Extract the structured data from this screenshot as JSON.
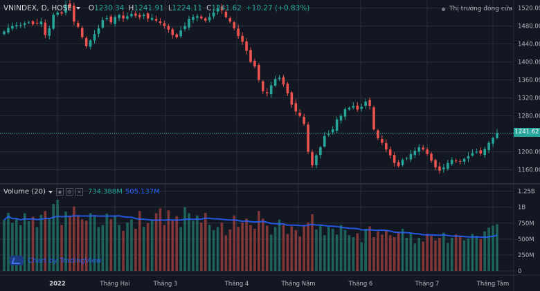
{
  "header": {
    "symbol": "VNINDEX, D, HOSE",
    "open_key": "O",
    "open": "1230.34",
    "high_key": "H",
    "high": "1241.91",
    "low_key": "L",
    "low": "1224.11",
    "close_key": "C",
    "close": "1241.62",
    "change": "+10.27 (+0.83%)"
  },
  "market_status": "Thị trường đóng cửa",
  "volume_header": {
    "label": "Volume (20)",
    "vol": "734.388M",
    "vol_ma": "505.137M"
  },
  "branding": "Chart by TradingView",
  "last_price_tag": "1241.62",
  "chart_data": [
    {
      "type": "candlestick",
      "title": "VNINDEX, D, HOSE",
      "y_ticks": [
        "1520.00",
        "1480.00",
        "1440.00",
        "1400.00",
        "1360.00",
        "1320.00",
        "1280.00",
        "1240.00",
        "1200.00",
        "1160.00"
      ],
      "ylim": [
        1130,
        1538
      ],
      "x_ticks": [
        "2022",
        "Tháng Hai",
        "Tháng 3",
        "Tháng 4",
        "Tháng Năm",
        "Tháng 6",
        "Tháng 7",
        "Tháng Tám"
      ],
      "last_close": 1241.62,
      "colors": {
        "up": "#26a69a",
        "down": "#ef5350",
        "background": "#131722",
        "grid": "#2a2e39",
        "text": "#b2b5be"
      },
      "closes": [
        1468,
        1476,
        1480,
        1482,
        1482,
        1486,
        1488,
        1484,
        1487,
        1490,
        1460,
        1475,
        1505,
        1510,
        1508,
        1528,
        1522,
        1490,
        1478,
        1455,
        1435,
        1448,
        1462,
        1475,
        1493,
        1498,
        1488,
        1500,
        1505,
        1497,
        1502,
        1507,
        1503,
        1500,
        1505,
        1497,
        1498,
        1492,
        1487,
        1480,
        1472,
        1460,
        1455,
        1470,
        1480,
        1496,
        1500,
        1502,
        1497,
        1492,
        1500,
        1510,
        1520,
        1515,
        1500,
        1490,
        1475,
        1458,
        1445,
        1425,
        1400,
        1390,
        1360,
        1335,
        1330,
        1348,
        1362,
        1365,
        1350,
        1330,
        1305,
        1290,
        1280,
        1262,
        1200,
        1170,
        1192,
        1210,
        1235,
        1240,
        1250,
        1272,
        1280,
        1295,
        1298,
        1302,
        1294,
        1300,
        1312,
        1302,
        1250,
        1230,
        1220,
        1205,
        1192,
        1175,
        1168,
        1182,
        1186,
        1195,
        1202,
        1210,
        1205,
        1195,
        1180,
        1165,
        1158,
        1165,
        1175,
        1182,
        1180,
        1178,
        1184,
        1190,
        1197,
        1200,
        1196,
        1206,
        1220,
        1231,
        1241.62
      ],
      "volume": {
        "y_ticks": [
          "1.25B",
          "1B",
          "750M",
          "500M",
          "250M",
          "0"
        ],
        "ylim": [
          0,
          1300000000
        ],
        "last_volume": 734388000,
        "last_volume_ma": 505137000,
        "values_M": [
          800,
          910,
          755,
          820,
          720,
          905,
          780,
          850,
          690,
          880,
          940,
          820,
          1050,
          1115,
          720,
          930,
          860,
          1010,
          870,
          810,
          790,
          905,
          865,
          690,
          720,
          900,
          810,
          860,
          720,
          630,
          760,
          810,
          660,
          940,
          690,
          750,
          800,
          905,
          980,
          720,
          950,
          790,
          860,
          690,
          1000,
          905,
          790,
          870,
          760,
          910,
          720,
          640,
          690,
          760,
          560,
          650,
          870,
          690,
          760,
          820,
          720,
          660,
          940,
          820,
          710,
          570,
          690,
          805,
          720,
          580,
          700,
          640,
          540,
          720,
          760,
          890,
          650,
          720,
          560,
          690,
          660,
          570,
          720,
          640,
          560,
          530,
          590,
          450,
          660,
          700,
          530,
          620,
          570,
          640,
          560,
          530,
          600,
          660,
          520,
          590,
          430,
          520,
          460,
          580,
          550,
          480,
          520,
          600,
          440,
          520,
          570,
          550,
          480,
          510,
          580,
          550,
          500,
          620,
          680,
          710,
          734.388
        ]
      }
    }
  ]
}
